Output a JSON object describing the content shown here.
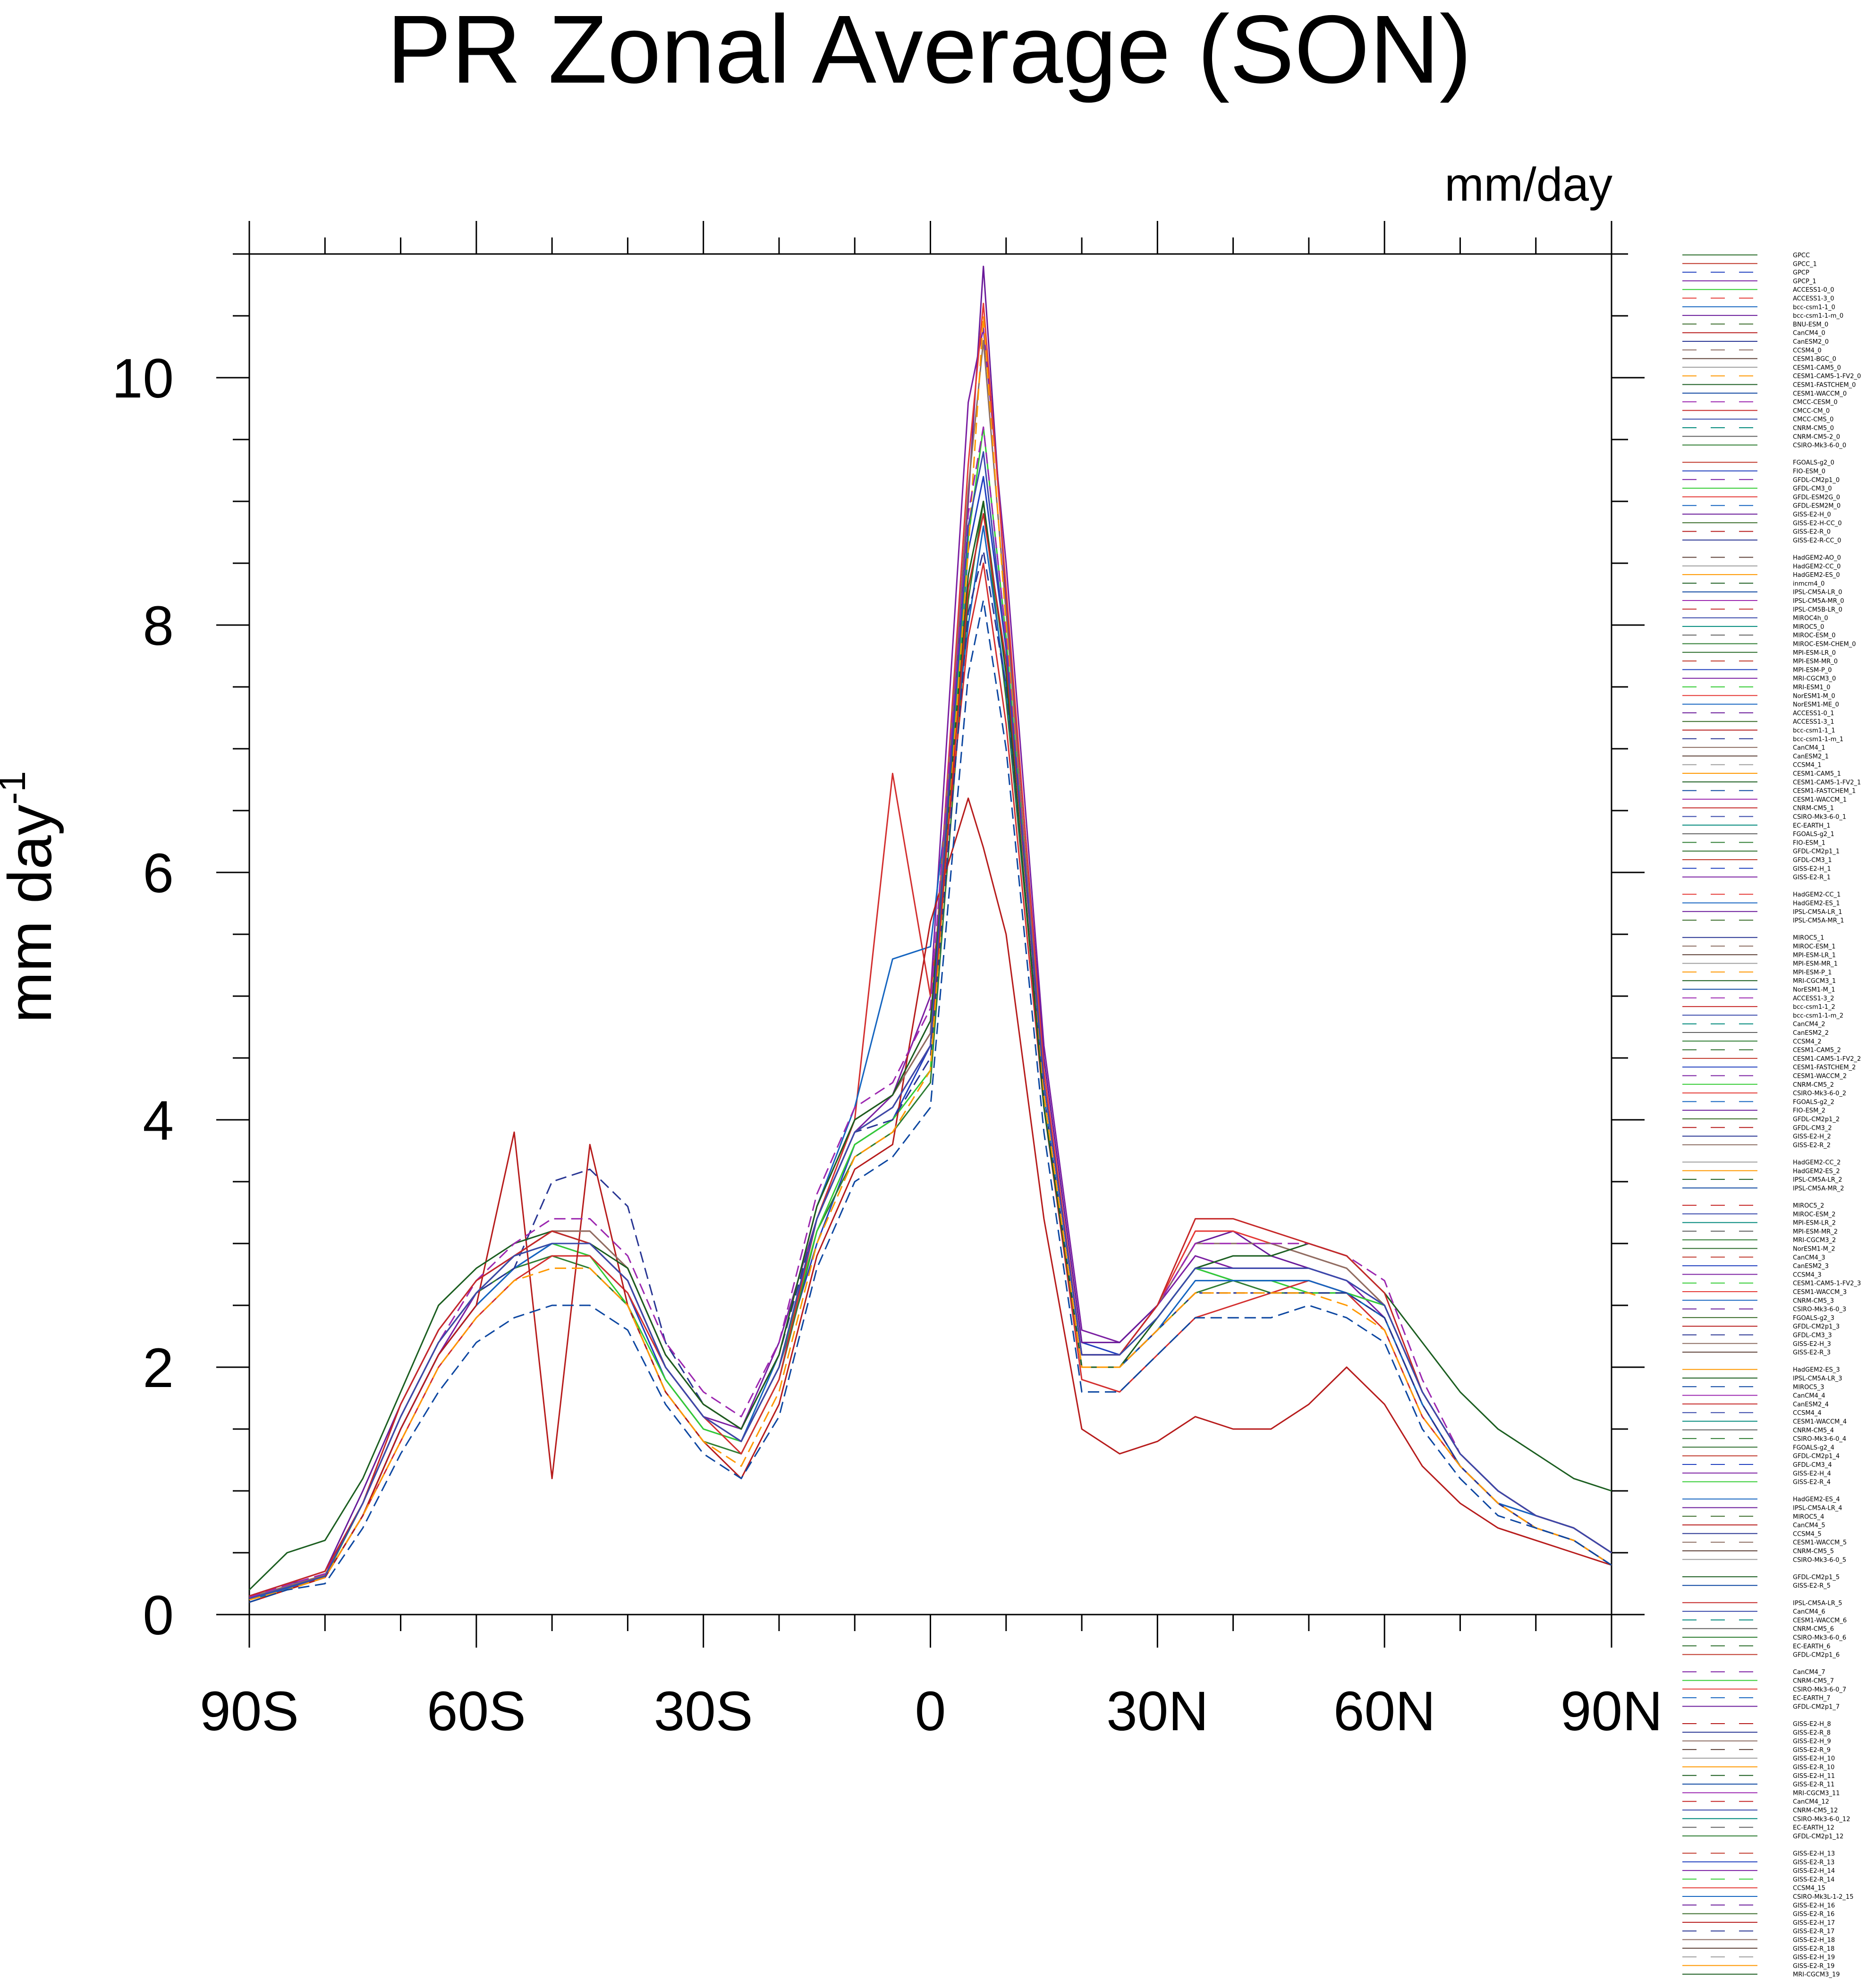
{
  "chart_data": {
    "type": "line",
    "title": "PR Zonal Average (SON)",
    "units_label": "mm/day",
    "ylabel": "mm day",
    "ylabel_superscript": "-1",
    "xlabel": "",
    "xlim": [
      -90,
      90
    ],
    "ylim": [
      0,
      11
    ],
    "x_ticks": [
      {
        "value": -90,
        "label": "90S"
      },
      {
        "value": -60,
        "label": "60S"
      },
      {
        "value": -30,
        "label": "30S"
      },
      {
        "value": 0,
        "label": "0"
      },
      {
        "value": 30,
        "label": "30N"
      },
      {
        "value": 60,
        "label": "60N"
      },
      {
        "value": 90,
        "label": "90N"
      }
    ],
    "y_ticks": [
      {
        "value": 0,
        "label": "0"
      },
      {
        "value": 2,
        "label": "2"
      },
      {
        "value": 4,
        "label": "4"
      },
      {
        "value": 6,
        "label": "6"
      },
      {
        "value": 8,
        "label": "8"
      },
      {
        "value": 10,
        "label": "10"
      }
    ],
    "grid": false,
    "legend_placement": "right",
    "x": [
      -90,
      -85,
      -80,
      -75,
      -70,
      -65,
      -60,
      -55,
      -50,
      -45,
      -40,
      -35,
      -30,
      -25,
      -20,
      -15,
      -10,
      -5,
      0,
      5,
      7,
      10,
      15,
      20,
      25,
      30,
      35,
      40,
      45,
      50,
      55,
      60,
      65,
      70,
      75,
      80,
      85,
      90
    ],
    "series": [
      {
        "name": "GPCC",
        "color": "#2c6e2c",
        "dash": false,
        "values": [
          null,
          null,
          null,
          null,
          null,
          null,
          null,
          null,
          null,
          null,
          null,
          null,
          null,
          null,
          null,
          null,
          null,
          null,
          null,
          null,
          null,
          null,
          null,
          null,
          null,
          null,
          null,
          null,
          null,
          null,
          null,
          null,
          null,
          null,
          null,
          null,
          null,
          null
        ]
      },
      {
        "name": "GPCC_1",
        "color": "#c0392b",
        "dash": false,
        "values": [
          null,
          null,
          null,
          null,
          null,
          null,
          null,
          null,
          null,
          null,
          null,
          null,
          null,
          null,
          null,
          null,
          null,
          null,
          null,
          null,
          null,
          null,
          null,
          null,
          null,
          null,
          null,
          null,
          null,
          null,
          null,
          null,
          null,
          null,
          null,
          null,
          null,
          null
        ]
      },
      {
        "name": "GPCP",
        "color": "#1f3fbf",
        "dash": false,
        "values": [
          0.15,
          0.25,
          0.3,
          0.8,
          1.5,
          2.1,
          2.5,
          2.8,
          3.0,
          2.9,
          2.6,
          1.9,
          1.5,
          1.4,
          2.0,
          3.0,
          3.8,
          4.0,
          4.6,
          8.6,
          9.2,
          7.8,
          4.5,
          2.2,
          2.1,
          2.4,
          2.8,
          2.7,
          2.7,
          2.7,
          2.6,
          2.5,
          1.8,
          1.3,
          1.0,
          0.8,
          0.7,
          0.5
        ]
      },
      {
        "name": "GPCP_1",
        "color": "#7b1fa2",
        "dash": false,
        "values": [
          0.15,
          0.25,
          0.3,
          0.8,
          1.5,
          2.1,
          2.6,
          2.9,
          3.0,
          3.0,
          2.7,
          2.0,
          1.6,
          1.5,
          2.2,
          3.2,
          3.9,
          4.2,
          5.0,
          9.8,
          10.4,
          8.5,
          4.6,
          2.3,
          2.2,
          2.5,
          2.9,
          2.8,
          2.8,
          2.8,
          2.7,
          2.4,
          1.7,
          1.2,
          0.9,
          0.8,
          0.7,
          0.5
        ]
      },
      {
        "name": "ACCESS1-0_0",
        "color": "#2e7d32",
        "dash": false,
        "values": [
          0.12,
          0.2,
          0.3,
          0.9,
          1.6,
          2.2,
          2.6,
          2.8,
          2.9,
          2.8,
          2.5,
          1.8,
          1.4,
          1.3,
          1.9,
          3.1,
          3.7,
          3.9,
          4.3,
          8.2,
          9.0,
          7.4,
          4.2,
          2.0,
          2.0,
          2.3,
          2.6,
          2.7,
          2.6,
          2.6,
          2.6,
          2.4,
          1.7,
          1.2,
          0.9,
          0.7,
          0.6,
          0.4
        ]
      },
      {
        "name": "ACCESS1-3_0",
        "color": "#33cc33",
        "dash": false,
        "values": [
          0.12,
          0.22,
          0.3,
          0.9,
          1.6,
          2.2,
          2.6,
          2.9,
          3.0,
          2.9,
          2.5,
          1.9,
          1.5,
          1.4,
          2.0,
          3.1,
          3.8,
          4.0,
          4.4,
          8.7,
          9.6,
          7.9,
          4.3,
          2.1,
          2.1,
          2.4,
          2.8,
          2.7,
          2.7,
          2.6,
          2.6,
          2.5,
          1.8,
          1.3,
          1.0,
          0.8,
          0.7,
          0.5
        ]
      },
      {
        "name": "bcc-csm1-1_0",
        "color": "#d32f2f",
        "dash": false,
        "values": [
          0.1,
          0.2,
          0.3,
          0.8,
          1.4,
          2.0,
          2.4,
          2.7,
          2.9,
          2.9,
          2.6,
          2.0,
          1.6,
          1.3,
          1.9,
          3.2,
          4.0,
          6.8,
          5.0,
          7.9,
          8.5,
          7.2,
          4.1,
          1.9,
          1.8,
          2.1,
          2.4,
          2.5,
          2.6,
          2.7,
          2.6,
          2.3,
          1.6,
          1.2,
          0.9,
          0.7,
          0.6,
          0.4
        ]
      },
      {
        "name": "bcc-csm1-1-m_0",
        "color": "#1565c0",
        "dash": false,
        "values": [
          0.12,
          0.21,
          0.3,
          0.8,
          1.5,
          2.1,
          2.5,
          2.8,
          3.0,
          3.0,
          2.7,
          2.0,
          1.6,
          1.4,
          2.1,
          3.3,
          4.1,
          5.3,
          5.4,
          8.0,
          8.8,
          7.5,
          4.2,
          2.0,
          2.0,
          2.3,
          2.7,
          2.7,
          2.7,
          2.7,
          2.6,
          2.4,
          1.7,
          1.2,
          0.9,
          0.8,
          0.7,
          0.5
        ]
      },
      {
        "name": "BNU-ESM_0",
        "color": "#6a1b9a",
        "dash": false,
        "values": [
          0.15,
          0.25,
          0.35,
          1.0,
          1.7,
          2.3,
          2.7,
          2.9,
          3.1,
          3.0,
          2.7,
          2.0,
          1.6,
          1.4,
          2.0,
          3.2,
          3.9,
          4.1,
          4.6,
          9.0,
          10.9,
          8.2,
          4.5,
          2.2,
          2.2,
          2.5,
          3.0,
          3.1,
          2.9,
          2.8,
          2.7,
          2.5,
          1.8,
          1.3,
          1.0,
          0.8,
          0.7,
          0.5
        ]
      },
      {
        "name": "CanCM4_0",
        "color": "#b71c1c",
        "dash": false,
        "values": [
          0.1,
          0.2,
          0.3,
          0.8,
          1.5,
          2.1,
          2.5,
          3.9,
          1.1,
          3.8,
          2.5,
          1.8,
          1.4,
          1.1,
          1.7,
          2.9,
          3.6,
          3.8,
          5.6,
          6.6,
          6.2,
          5.5,
          3.2,
          1.5,
          1.3,
          1.4,
          1.6,
          1.5,
          1.5,
          1.7,
          2.0,
          1.7,
          1.2,
          0.9,
          0.7,
          0.6,
          0.5,
          0.4
        ]
      },
      {
        "name": "CanESM2_0",
        "color": "#283593",
        "dash": true,
        "values": [
          0.13,
          0.22,
          0.32,
          0.9,
          1.6,
          2.2,
          2.6,
          2.8,
          3.5,
          3.6,
          3.3,
          2.2,
          1.7,
          1.5,
          2.1,
          3.2,
          3.9,
          4.0,
          4.5,
          8.1,
          8.6,
          7.5,
          4.2,
          2.0,
          2.0,
          2.3,
          2.6,
          2.6,
          2.6,
          2.6,
          2.6,
          2.4,
          1.7,
          1.2,
          0.9,
          0.7,
          0.6,
          0.4
        ]
      },
      {
        "name": "CCSM4_0",
        "color": "#e53935",
        "dash": false,
        "values": [
          0.14,
          0.23,
          0.32,
          0.9,
          1.6,
          2.2,
          2.6,
          2.9,
          3.1,
          3.1,
          2.8,
          2.1,
          1.7,
          1.5,
          2.1,
          3.3,
          4.0,
          4.2,
          4.7,
          9.3,
          10.6,
          8.3,
          4.4,
          2.1,
          2.1,
          2.5,
          3.1,
          3.1,
          3.0,
          2.9,
          2.8,
          2.5,
          1.8,
          1.3,
          1.0,
          0.8,
          0.7,
          0.5
        ]
      },
      {
        "name": "CESM1-BGC_0",
        "color": "#8d6e63",
        "dash": false,
        "values": [
          0.14,
          0.23,
          0.32,
          0.9,
          1.6,
          2.2,
          2.6,
          2.9,
          3.1,
          3.1,
          2.8,
          2.1,
          1.7,
          1.5,
          2.1,
          3.3,
          4.0,
          4.2,
          4.7,
          9.1,
          10.3,
          8.1,
          4.3,
          2.1,
          2.1,
          2.5,
          3.0,
          3.0,
          3.0,
          2.9,
          2.8,
          2.5,
          1.8,
          1.3,
          1.0,
          0.8,
          0.7,
          0.5
        ]
      },
      {
        "name": "GFDL-CM3_0",
        "color": "#1b5e20",
        "dash": false,
        "values": [
          0.2,
          0.5,
          0.6,
          1.1,
          1.8,
          2.5,
          2.8,
          3.0,
          3.1,
          3.0,
          2.8,
          2.1,
          1.7,
          1.5,
          2.1,
          3.3,
          4.0,
          4.2,
          4.8,
          8.4,
          9.0,
          7.6,
          4.1,
          2.0,
          2.0,
          2.4,
          2.8,
          2.9,
          2.9,
          3.0,
          2.9,
          2.6,
          2.2,
          1.8,
          1.5,
          1.3,
          1.1,
          1.0
        ]
      },
      {
        "name": "HadGEM2-ES_0",
        "color": "#ff9800",
        "dash": true,
        "values": [
          0.12,
          0.2,
          0.3,
          0.8,
          1.4,
          2.0,
          2.4,
          2.7,
          2.8,
          2.8,
          2.5,
          1.8,
          1.4,
          1.2,
          1.8,
          3.0,
          3.7,
          3.9,
          4.4,
          8.6,
          10.5,
          8.0,
          4.2,
          2.0,
          2.0,
          2.3,
          2.6,
          2.6,
          2.6,
          2.6,
          2.5,
          2.3,
          1.6,
          1.2,
          0.9,
          0.7,
          0.6,
          0.4
        ]
      },
      {
        "name": "IPSL-CM5A-LR_0",
        "color": "#0d47a1",
        "dash": true,
        "values": [
          0.1,
          0.2,
          0.25,
          0.7,
          1.3,
          1.8,
          2.2,
          2.4,
          2.5,
          2.5,
          2.3,
          1.7,
          1.3,
          1.1,
          1.6,
          2.8,
          3.5,
          3.7,
          4.1,
          7.6,
          8.2,
          7.0,
          3.9,
          1.8,
          1.8,
          2.1,
          2.4,
          2.4,
          2.4,
          2.5,
          2.4,
          2.2,
          1.5,
          1.1,
          0.8,
          0.7,
          0.6,
          0.4
        ]
      },
      {
        "name": "MIROC5_0",
        "color": "#9c27b0",
        "dash": true,
        "values": [
          0.14,
          0.24,
          0.33,
          0.9,
          1.6,
          2.2,
          2.7,
          3.0,
          3.2,
          3.2,
          2.9,
          2.2,
          1.8,
          1.6,
          2.2,
          3.4,
          4.1,
          4.3,
          4.9,
          8.9,
          9.6,
          7.9,
          4.3,
          2.1,
          2.1,
          2.5,
          3.0,
          3.0,
          3.0,
          3.0,
          2.9,
          2.7,
          1.9,
          1.3,
          1.0,
          0.8,
          0.7,
          0.5
        ]
      },
      {
        "name": "MRI-CGCM3_0",
        "color": "#c62828",
        "dash": false,
        "values": [
          0.15,
          0.25,
          0.35,
          0.9,
          1.7,
          2.3,
          2.7,
          2.9,
          3.1,
          3.0,
          2.7,
          2.0,
          1.6,
          1.4,
          2.0,
          3.2,
          3.9,
          4.1,
          4.6,
          8.3,
          8.9,
          7.7,
          4.3,
          2.1,
          2.1,
          2.5,
          3.2,
          3.2,
          3.1,
          3.0,
          2.9,
          2.6,
          1.8,
          1.3,
          1.0,
          0.8,
          0.7,
          0.5
        ]
      },
      {
        "name": "NorESM1-M_0",
        "color": "#3949ab",
        "dash": false,
        "values": [
          0.13,
          0.22,
          0.31,
          0.9,
          1.6,
          2.2,
          2.6,
          2.9,
          3.0,
          3.0,
          2.7,
          2.0,
          1.6,
          1.4,
          2.0,
          3.2,
          3.9,
          4.1,
          4.6,
          8.8,
          9.4,
          7.8,
          4.3,
          2.1,
          2.1,
          2.4,
          2.8,
          2.8,
          2.8,
          2.8,
          2.7,
          2.5,
          1.8,
          1.3,
          1.0,
          0.8,
          0.7,
          0.5
        ]
      }
    ],
    "legend_entries": [
      "GPCC",
      "GPCC_1",
      "GPCP",
      "GPCP_1",
      "ACCESS1-0_0",
      "ACCESS1-3_0",
      "bcc-csm1-1_0",
      "bcc-csm1-1-m_0",
      "BNU-ESM_0",
      "CanCM4_0",
      "CanESM2_0",
      "CCSM4_0",
      "CESM1-BGC_0",
      "CESM1-CAM5_0",
      "CESM1-CAM5-1-FV2_0",
      "CESM1-FASTCHEM_0",
      "CESM1-WACCM_0",
      "CMCC-CESM_0",
      "CMCC-CM_0",
      "CMCC-CMS_0",
      "CNRM-CM5_0",
      "CNRM-CM5-2_0",
      "CSIRO-Mk3-6-0_0",
      "",
      "FGOALS-g2_0",
      "FIO-ESM_0",
      "GFDL-CM2p1_0",
      "GFDL-CM3_0",
      "GFDL-ESM2G_0",
      "GFDL-ESM2M_0",
      "GISS-E2-H_0",
      "GISS-E2-H-CC_0",
      "GISS-E2-R_0",
      "GISS-E2-R-CC_0",
      "",
      "HadGEM2-AO_0",
      "HadGEM2-CC_0",
      "HadGEM2-ES_0",
      "inmcm4_0",
      "IPSL-CM5A-LR_0",
      "IPSL-CM5A-MR_0",
      "IPSL-CM5B-LR_0",
      "MIROC4h_0",
      "MIROC5_0",
      "MIROC-ESM_0",
      "MIROC-ESM-CHEM_0",
      "MPI-ESM-LR_0",
      "MPI-ESM-MR_0",
      "MPI-ESM-P_0",
      "MRI-CGCM3_0",
      "MRI-ESM1_0",
      "NorESM1-M_0",
      "NorESM1-ME_0",
      "ACCESS1-0_1",
      "ACCESS1-3_1",
      "bcc-csm1-1_1",
      "bcc-csm1-1-m_1",
      "CanCM4_1",
      "CanESM2_1",
      "CCSM4_1",
      "CESM1-CAM5_1",
      "CESM1-CAM5-1-FV2_1",
      "CESM1-FASTCHEM_1",
      "CESM1-WACCM_1",
      "CNRM-CM5_1",
      "CSIRO-Mk3-6-0_1",
      "EC-EARTH_1",
      "FGOALS-g2_1",
      "FIO-ESM_1",
      "GFDL-CM2p1_1",
      "GFDL-CM3_1",
      "GISS-E2-H_1",
      "GISS-E2-R_1",
      "",
      "HadGEM2-CC_1",
      "HadGEM2-ES_1",
      "IPSL-CM5A-LR_1",
      "IPSL-CM5A-MR_1",
      "",
      "MIROC5_1",
      "MIROC-ESM_1",
      "MPI-ESM-LR_1",
      "MPI-ESM-MR_1",
      "MPI-ESM-P_1",
      "MRI-CGCM3_1",
      "NorESM1-M_1",
      "ACCESS1-3_2",
      "bcc-csm1-1_2",
      "bcc-csm1-1-m_2",
      "CanCM4_2",
      "CanESM2_2",
      "CCSM4_2",
      "CESM1-CAM5_2",
      "CESM1-CAM5-1-FV2_2",
      "CESM1-FASTCHEM_2",
      "CESM1-WACCM_2",
      "CNRM-CM5_2",
      "CSIRO-Mk3-6-0_2",
      "FGOALS-g2_2",
      "FIO-ESM_2",
      "GFDL-CM2p1_2",
      "GFDL-CM3_2",
      "GISS-E2-H_2",
      "GISS-E2-R_2",
      "",
      "HadGEM2-CC_2",
      "HadGEM2-ES_2",
      "IPSL-CM5A-LR_2",
      "IPSL-CM5A-MR_2",
      "",
      "MIROC5_2",
      "MIROC-ESM_2",
      "MPI-ESM-LR_2",
      "MPI-ESM-MR_2",
      "MRI-CGCM3_2",
      "NorESM1-M_2",
      "CanCM4_3",
      "CanESM2_3",
      "CCSM4_3",
      "CESM1-CAM5-1-FV2_3",
      "CESM1-WACCM_3",
      "CNRM-CM5_3",
      "CSIRO-Mk3-6-0_3",
      "FGOALS-g2_3",
      "GFDL-CM2p1_3",
      "GFDL-CM3_3",
      "GISS-E2-H_3",
      "GISS-E2-R_3",
      "",
      "HadGEM2-ES_3",
      "IPSL-CM5A-LR_3",
      "MIROC5_3",
      "CanCM4_4",
      "CanESM2_4",
      "CCSM4_4",
      "CESM1-WACCM_4",
      "CNRM-CM5_4",
      "CSIRO-Mk3-6-0_4",
      "FGOALS-g2_4",
      "GFDL-CM2p1_4",
      "GFDL-CM3_4",
      "GISS-E2-H_4",
      "GISS-E2-R_4",
      "",
      "HadGEM2-ES_4",
      "IPSL-CM5A-LR_4",
      "MIROC5_4",
      "CanCM4_5",
      "CCSM4_5",
      "CESM1-WACCM_5",
      "CNRM-CM5_5",
      "CSIRO-Mk3-6-0_5",
      "",
      "GFDL-CM2p1_5",
      "GISS-E2-R_5",
      "",
      "IPSL-CM5A-LR_5",
      "CanCM4_6",
      "CESM1-WACCM_6",
      "CNRM-CM5_6",
      "CSIRO-Mk3-6-0_6",
      "EC-EARTH_6",
      "GFDL-CM2p1_6",
      "",
      "CanCM4_7",
      "CNRM-CM5_7",
      "CSIRO-Mk3-6-0_7",
      "EC-EARTH_7",
      "GFDL-CM2p1_7",
      "",
      "GISS-E2-H_8",
      "GISS-E2-R_8",
      "GISS-E2-H_9",
      "GISS-E2-R_9",
      "GISS-E2-H_10",
      "GISS-E2-R_10",
      "GISS-E2-H_11",
      "GISS-E2-R_11",
      "MRI-CGCM3_11",
      "CanCM4_12",
      "CNRM-CM5_12",
      "CSIRO-Mk3-6-0_12",
      "EC-EARTH_12",
      "GFDL-CM2p1_12",
      "",
      "GISS-E2-H_13",
      "GISS-E2-R_13",
      "GISS-E2-H_14",
      "GISS-E2-R_14",
      "CCSM4_15",
      "CSIRO-Mk3L-1-2_15",
      "GISS-E2-H_16",
      "GISS-E2-R_16",
      "GISS-E2-H_17",
      "GISS-E2-R_17",
      "GISS-E2-H_18",
      "GISS-E2-R_18",
      "GISS-E2-H_19",
      "GISS-E2-R_19",
      "MRI-CGCM3_19"
    ],
    "legend_colors": [
      "#2c6e2c",
      "#c0392b",
      "#1f3fbf",
      "#7b1fa2",
      "#33cc33",
      "#e53935",
      "#1565c0",
      "#6a1b9a",
      "#3b6e2c",
      "#b71c1c",
      "#283593",
      "#8d6e63",
      "#5d4037",
      "#9e9e9e",
      "#ff9800",
      "#1b5e20",
      "#0d47a1",
      "#9c27b0",
      "#c62828",
      "#3949ab",
      "#00897b",
      "#616161",
      "#2e7d32"
    ]
  }
}
